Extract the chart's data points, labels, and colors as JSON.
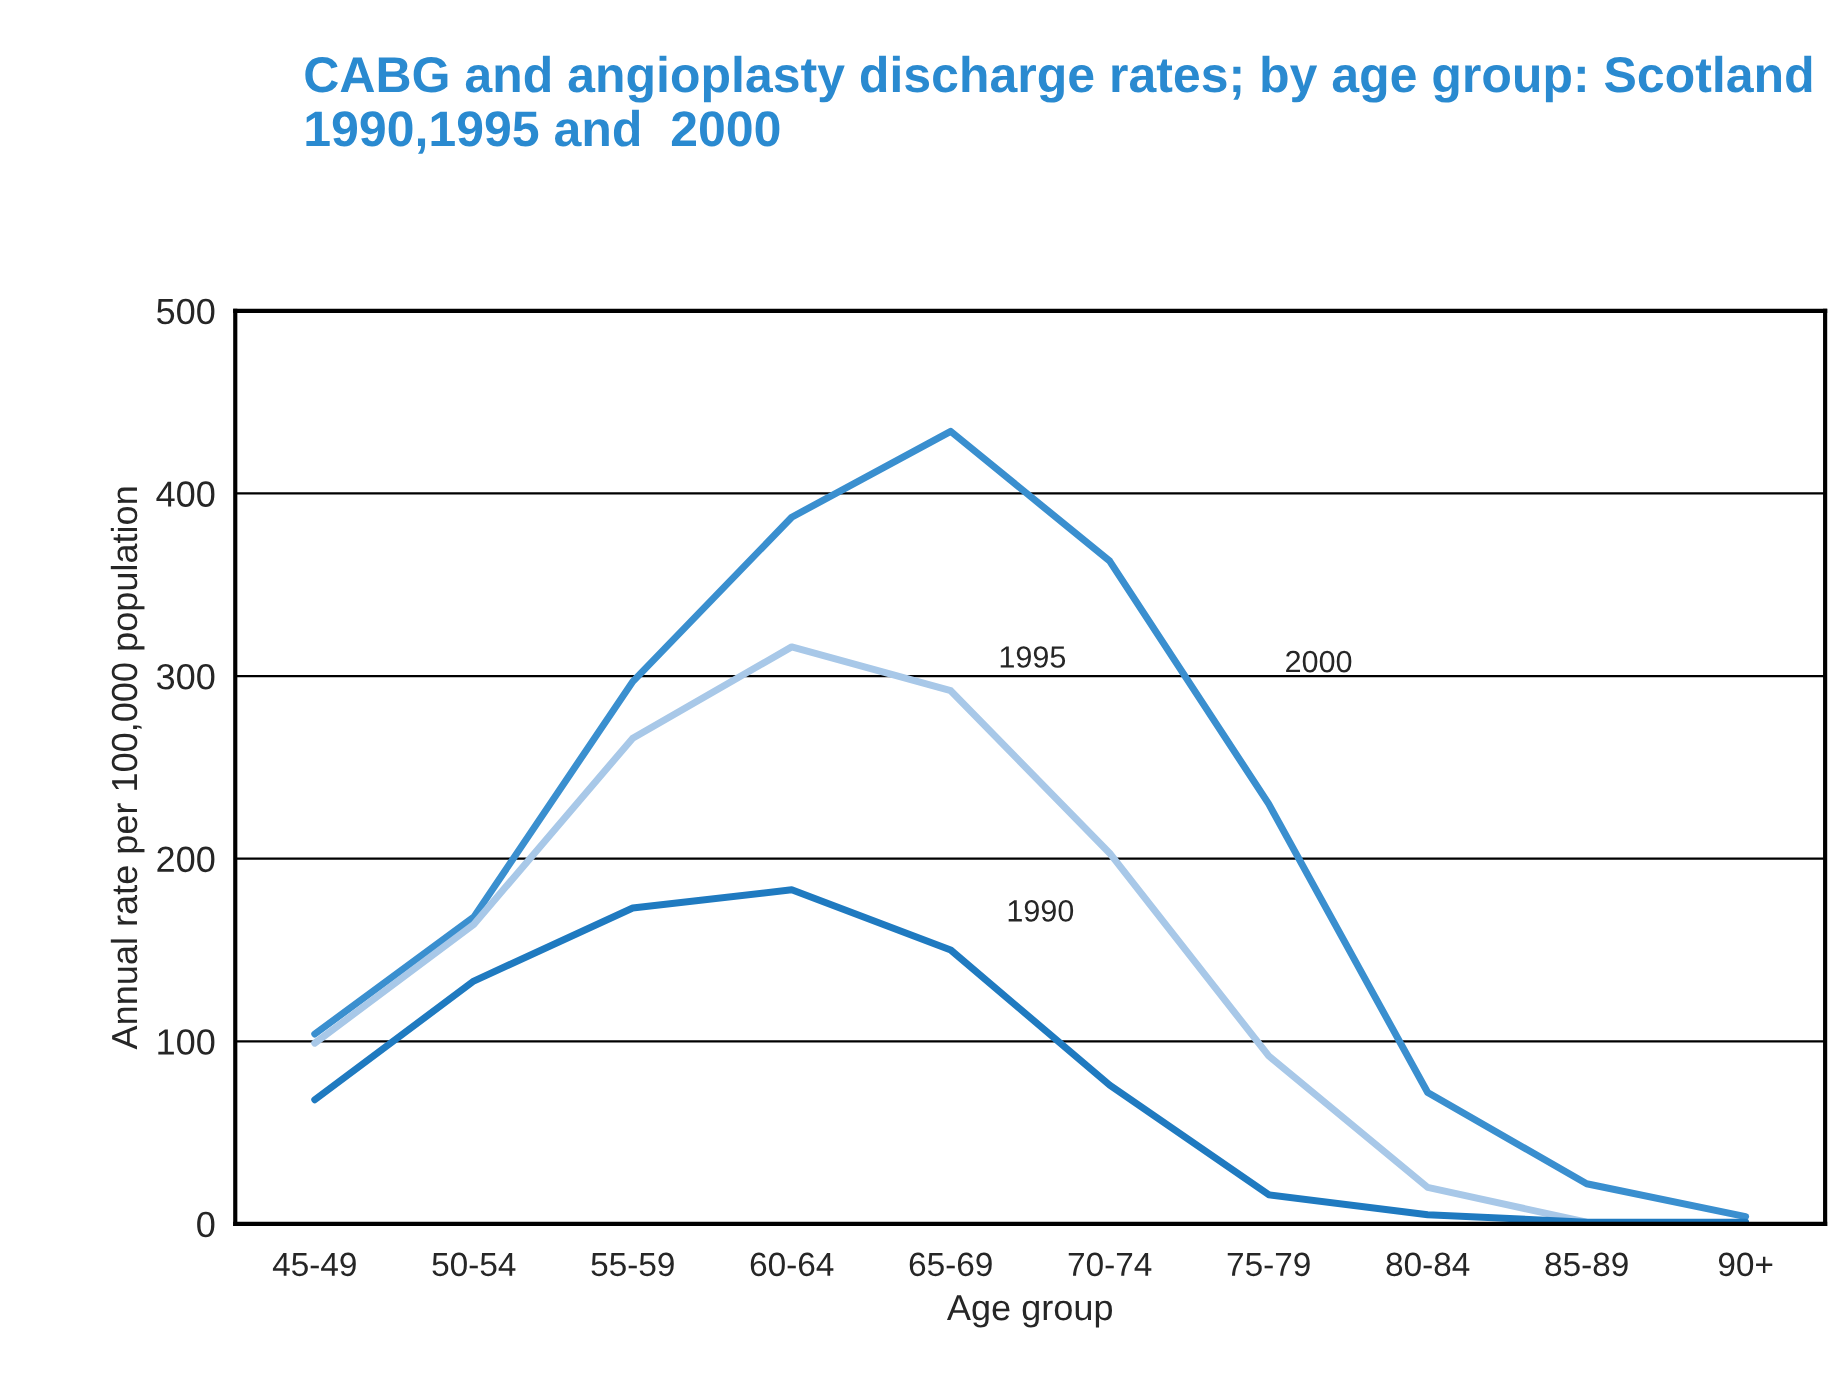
{
  "chart_data": {
    "type": "line",
    "title": "CABG and angioplasty discharge rates; by age group: Scotland 1990,1995 and  2000",
    "xlabel": "Age group",
    "ylabel": "Annual rate per 100,000 population",
    "categories": [
      "45-49",
      "50-54",
      "55-59",
      "60-64",
      "65-69",
      "70-74",
      "75-79",
      "80-84",
      "85-89",
      "90+"
    ],
    "series": [
      {
        "name": "2000",
        "color": "#3a8fcf",
        "values": [
          104,
          168,
          297,
          387,
          434,
          363,
          230,
          72,
          22,
          4
        ]
      },
      {
        "name": "1995",
        "color": "#a8c8e8",
        "values": [
          99,
          164,
          266,
          316,
          292,
          203,
          92,
          20,
          1,
          0
        ]
      },
      {
        "name": "1990",
        "color": "#1f7ac0",
        "values": [
          68,
          133,
          173,
          183,
          150,
          76,
          16,
          5,
          1,
          1
        ]
      }
    ],
    "ylim": [
      0,
      500
    ],
    "yticks": [
      0,
      100,
      200,
      300,
      400,
      500
    ],
    "grid": "y",
    "legend": false,
    "marker": "none",
    "line_style": "solid"
  }
}
